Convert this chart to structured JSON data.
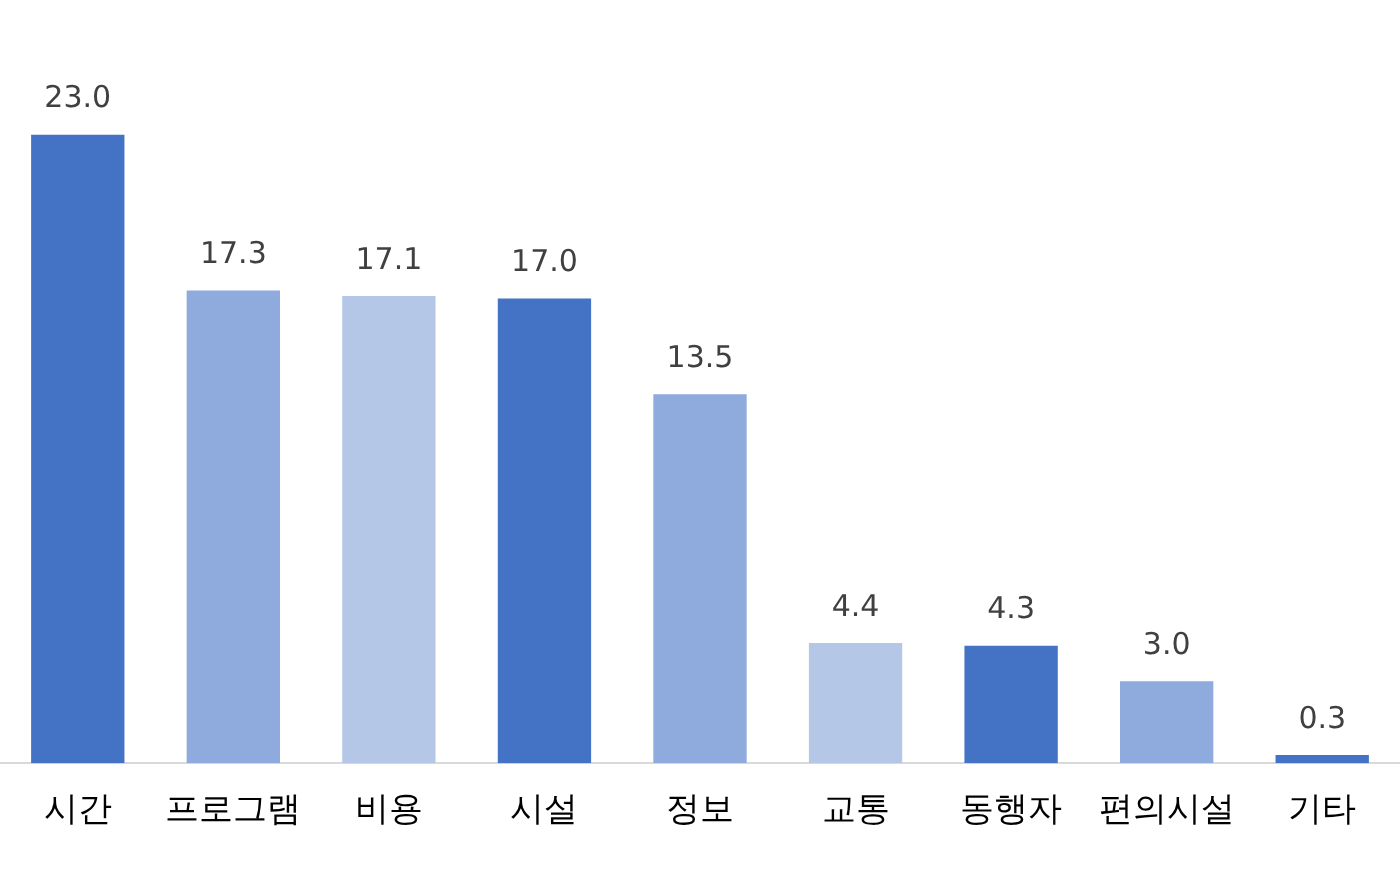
{
  "chart_data": {
    "type": "bar",
    "categories": [
      "시간",
      "프로그램",
      "비용",
      "시설",
      "정보",
      "교통",
      "동행자",
      "편의시설",
      "기타"
    ],
    "values": [
      23.0,
      17.3,
      17.1,
      17.0,
      13.5,
      4.4,
      4.3,
      3.0,
      0.3
    ],
    "colors": [
      "#4472c4",
      "#8faadc",
      "#b4c7e7",
      "#4472c4",
      "#8faadc",
      "#b4c7e7",
      "#4472c4",
      "#8faadc",
      "#4472c4"
    ],
    "value_labels": [
      "23.0",
      "17.3",
      "17.1",
      "17.0",
      "13.5",
      "4.4",
      "4.3",
      "3.0",
      "0.3"
    ],
    "grid": false,
    "legend": false
  }
}
